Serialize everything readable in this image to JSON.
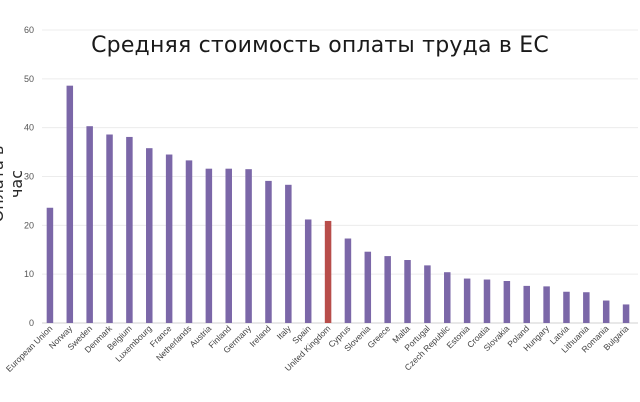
{
  "chart_data": {
    "type": "bar",
    "title": "Средняя стоимость оплаты труда в ЕС",
    "ylabel": "Оплата в час",
    "xlabel": "",
    "ylim": [
      0,
      60
    ],
    "yticks": [
      0,
      10,
      20,
      30,
      40,
      50,
      60
    ],
    "grid": true,
    "legend": "none",
    "bar_color": "#7b67a8",
    "highlight_color": "#b84d4a",
    "highlight_category": "United Kingdom",
    "categories": [
      "European Union",
      "Norway",
      "Sweden",
      "Denmark",
      "Belgium",
      "Luxembourg",
      "France",
      "Netherlands",
      "Austria",
      "Finland",
      "Germany",
      "Ireland",
      "Italy",
      "Spain",
      "United Kingdom",
      "Cyprus",
      "Slovenia",
      "Greece",
      "Malta",
      "Portugal",
      "Czech Republic",
      "Estonia",
      "Croatia",
      "Slovakia",
      "Poland",
      "Hungary",
      "Latvia",
      "Lithuania",
      "Romania",
      "Bulgaria"
    ],
    "values": [
      23.6,
      48.6,
      40.3,
      38.6,
      38.1,
      35.8,
      34.5,
      33.3,
      31.6,
      31.6,
      31.5,
      29.1,
      28.3,
      21.2,
      20.9,
      17.3,
      14.6,
      13.7,
      12.9,
      11.8,
      10.4,
      9.1,
      8.9,
      8.6,
      7.6,
      7.5,
      6.4,
      6.3,
      4.6,
      3.8
    ]
  }
}
